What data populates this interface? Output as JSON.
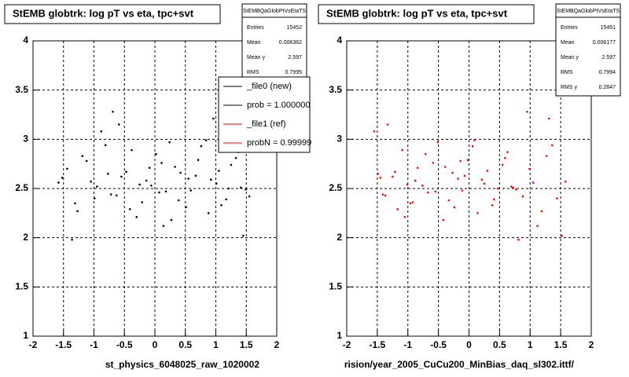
{
  "chart_data": [
    {
      "type": "scatter",
      "title": "StEMB globtrk: log pT vs eta, tpc+svt",
      "x_label": "st_physics_6048025_raw_1020002",
      "xlim": [
        -2,
        2
      ],
      "ylim": [
        1,
        4
      ],
      "xticks": [
        -2,
        -1.5,
        -1,
        -0.5,
        0,
        0.5,
        1,
        1.5,
        2
      ],
      "yticks": [
        1,
        1.5,
        2,
        2.5,
        3,
        3.5,
        4
      ],
      "grid": true,
      "stats": {
        "title": "StEMBQaGlobPtVsEtaTS",
        "rows": [
          [
            "Entries",
            15452
          ],
          [
            "Mean",
            0.006362
          ],
          [
            "Mean y",
            2.597
          ],
          [
            "RMS",
            0.7995
          ]
        ]
      },
      "legend": [
        {
          "label": "_file0 (new)",
          "color": "#000000"
        },
        {
          "label": "prob = 1.000000",
          "color": "#000000"
        },
        {
          "label": "_file1 (ref)",
          "color": "#ff0000"
        },
        {
          "label": "probN = 0.99999",
          "color": "#ff0000"
        }
      ],
      "series": [
        {
          "color": "#000000",
          "x": [
            -1.52,
            -1.31,
            -1.12,
            -0.95,
            -0.81,
            -0.63,
            -0.47,
            -0.3,
            -0.14,
            0.02,
            0.18,
            0.33,
            0.51,
            0.67,
            0.84,
            1.01,
            1.17,
            1.33,
            1.49,
            -1.44,
            -1.27,
            -1.05,
            -0.88,
            -0.72,
            -0.55,
            -0.38,
            -0.21,
            -0.06,
            0.11,
            0.27,
            0.42,
            0.59,
            0.76,
            0.92,
            1.09,
            1.25,
            1.41,
            1.55,
            -1.58,
            -1.19,
            -0.99,
            -0.77,
            -0.59,
            -0.41,
            -0.25,
            -0.09,
            0.07,
            0.24,
            0.39,
            0.55,
            0.71,
            0.88,
            1.05,
            1.21,
            1.37,
            -1.36,
            -0.69,
            0.14,
            0.96,
            1.45
          ],
          "y": [
            2.61,
            2.35,
            2.78,
            2.52,
            2.94,
            2.43,
            2.67,
            2.21,
            2.58,
            2.85,
            2.47,
            2.72,
            2.31,
            2.63,
            2.99,
            2.55,
            2.39,
            2.81,
            2.49,
            2.7,
            2.27,
            2.57,
            3.08,
            2.44,
            2.62,
            2.89,
            2.36,
            2.53,
            2.76,
            2.18,
            2.66,
            2.48,
            2.93,
            2.59,
            2.33,
            2.74,
            2.51,
            2.42,
            2.56,
            2.83,
            2.4,
            2.65,
            3.15,
            2.29,
            2.54,
            2.71,
            2.46,
            2.97,
            2.38,
            2.6,
            2.79,
            2.25,
            2.68,
            2.5,
            2.87,
            1.98,
            3.28,
            2.12,
            3.21,
            2.02
          ]
        }
      ]
    },
    {
      "type": "scatter",
      "title": "StEMB globtrk: log pT vs eta, tpc+svt",
      "x_label": "rision/year_2005_CuCu200_MinBias_daq_sl302.ittf/",
      "xlim": [
        -2,
        2
      ],
      "ylim": [
        1,
        4
      ],
      "xticks": [
        -2,
        -1.5,
        -1,
        -0.5,
        0,
        0.5,
        1,
        1.5,
        2
      ],
      "yticks": [
        1,
        1.5,
        2,
        2.5,
        3,
        3.5,
        4
      ],
      "grid": true,
      "stats": {
        "title": "StEMBQaGlobPtVsEtaTS",
        "rows": [
          [
            "Entries",
            15451
          ],
          [
            "Mean",
            0.006177
          ],
          [
            "Mean y",
            2.597
          ],
          [
            "RMS",
            0.7994
          ],
          [
            "RMS y",
            0.2847
          ]
        ]
      },
      "series": [
        {
          "color": "#ff0000",
          "x": [
            1.52,
            1.31,
            1.12,
            0.95,
            0.81,
            0.63,
            0.47,
            0.3,
            0.14,
            -0.02,
            -0.18,
            -0.33,
            -0.51,
            -0.67,
            -0.84,
            -1.01,
            -1.17,
            -1.33,
            -1.49,
            1.44,
            1.27,
            1.05,
            0.88,
            0.72,
            0.55,
            0.38,
            0.21,
            0.06,
            -0.11,
            -0.27,
            -0.42,
            -0.59,
            -0.76,
            -0.92,
            -1.09,
            -1.25,
            -1.41,
            -1.55,
            1.58,
            1.19,
            0.99,
            0.77,
            0.59,
            0.41,
            0.25,
            0.09,
            -0.07,
            -0.24,
            -0.39,
            -0.55,
            -0.71,
            -0.88,
            -1.05,
            -1.21,
            -1.37,
            1.36,
            0.69,
            -0.14,
            -0.96,
            -1.45
          ],
          "y": [
            2.02,
            3.21,
            2.12,
            3.28,
            1.98,
            2.87,
            2.5,
            2.68,
            2.25,
            2.79,
            2.6,
            2.38,
            2.97,
            2.46,
            2.71,
            2.54,
            2.29,
            3.15,
            2.65,
            2.4,
            2.83,
            2.56,
            2.42,
            2.51,
            2.74,
            2.33,
            2.59,
            2.93,
            2.48,
            2.66,
            2.18,
            2.76,
            2.53,
            2.36,
            2.89,
            2.62,
            2.44,
            3.08,
            2.57,
            2.27,
            2.7,
            2.49,
            2.81,
            2.39,
            2.55,
            2.99,
            2.63,
            2.31,
            2.72,
            2.47,
            2.85,
            2.58,
            2.21,
            2.67,
            2.43,
            2.94,
            2.52,
            2.78,
            2.35,
            2.61
          ]
        }
      ]
    }
  ]
}
